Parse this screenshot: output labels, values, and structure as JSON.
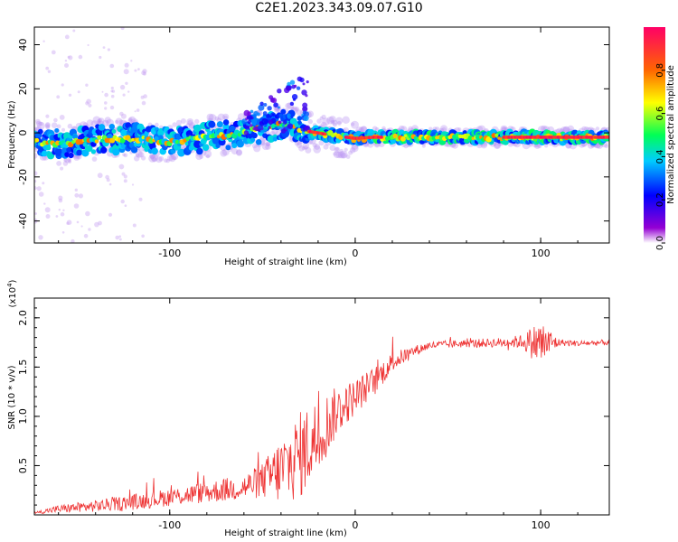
{
  "figure": {
    "title": "C2E1.2023.343.09.07.G10"
  },
  "chart_data": [
    {
      "type": "heatmap",
      "xlabel": "Height of straight line (km)",
      "ylabel": "Frequency (Hz)",
      "xlim": [
        -173,
        137
      ],
      "ylim": [
        -50,
        48
      ],
      "xticks": [
        -100,
        0,
        100
      ],
      "yticks": [
        -40,
        -20,
        0,
        20,
        40
      ],
      "colorbar": {
        "label": "Normalized spectral amplitude",
        "range": [
          0,
          1
        ],
        "ticks": [
          "0.0",
          "0.2",
          "0.4",
          "0.6",
          "0.8"
        ],
        "tick_values": [
          0,
          0.2,
          0.4,
          0.6,
          0.8
        ]
      },
      "ridge_frequency": {
        "x": [
          -173,
          -160,
          -140,
          -120,
          -100,
          -80,
          -60,
          -45,
          -35,
          -28,
          -20,
          -10,
          0,
          10,
          20,
          60,
          100,
          137
        ],
        "y": [
          -4,
          -5,
          -3,
          -2.5,
          -4,
          -2,
          0,
          3,
          4,
          1,
          0,
          -1.5,
          -2.5,
          -2,
          -2,
          -2,
          -2,
          -2
        ]
      }
    },
    {
      "type": "line",
      "xlabel": "Height of straight line (km)",
      "ylabel": "SNR (10 * v/v)",
      "yscale_label": "(x10",
      "yscale_exp": "4",
      "yscale_close": ")",
      "xlim": [
        -173,
        137
      ],
      "ylim": [
        0,
        22000
      ],
      "xticks": [
        -100,
        0,
        100
      ],
      "yticks": [
        0.5,
        1.0,
        1.5,
        2.0
      ],
      "ytick_labels": [
        "0.5",
        "1.0",
        "1.5",
        "2.0"
      ],
      "color": "#ee3333",
      "series": [
        {
          "x": [
            -173,
            -160,
            -140,
            -120,
            -100,
            -80,
            -60,
            -50,
            -40,
            -30,
            -20,
            -10,
            0,
            10,
            20,
            30,
            40,
            60,
            80,
            90,
            100,
            110,
            120,
            137
          ],
          "y": [
            200,
            600,
            900,
            1300,
            1800,
            2300,
            2800,
            3500,
            4500,
            6000,
            8000,
            10500,
            12000,
            13500,
            15500,
            16500,
            17200,
            17400,
            17500,
            17600,
            17400,
            17500,
            17400,
            17500
          ],
          "noise": [
            100,
            400,
            600,
            800,
            900,
            1100,
            1300,
            1800,
            3500,
            4500,
            4000,
            2500,
            1800,
            1500,
            1000,
            600,
            400,
            400,
            500,
            700,
            2500,
            350,
            300,
            300
          ]
        }
      ]
    }
  ]
}
